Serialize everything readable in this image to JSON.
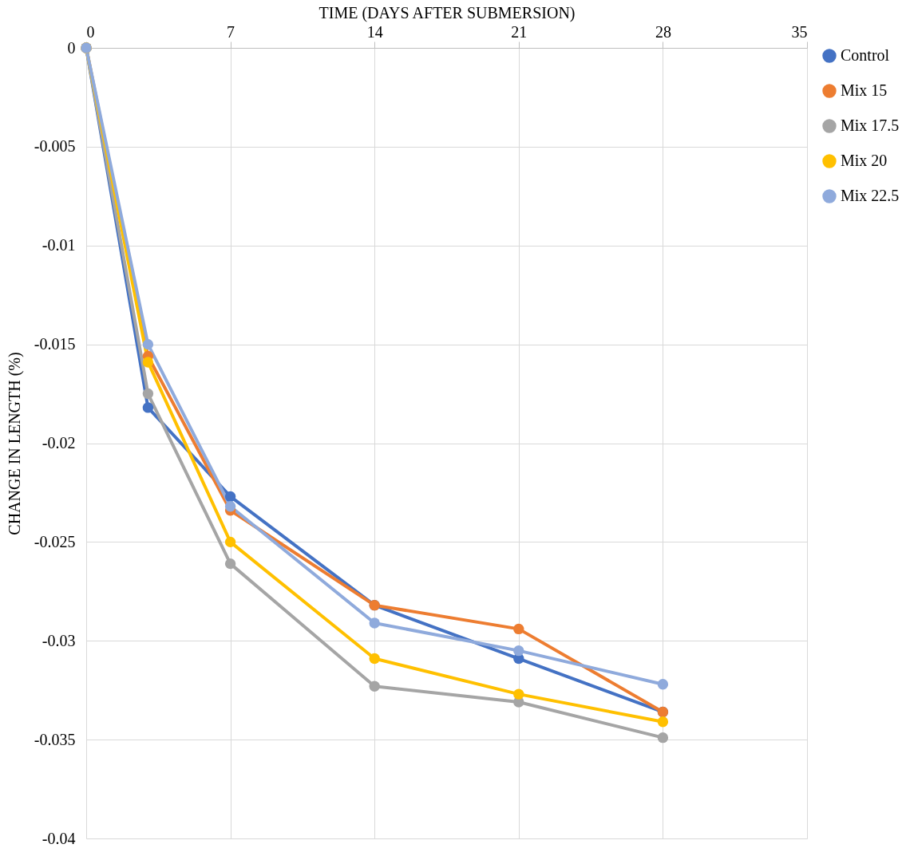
{
  "chart_data": {
    "type": "line",
    "xlabel": "TIME (DAYS AFTER SUBMERSION)",
    "ylabel": "CHANGE IN LENGTH (%)",
    "x": [
      0,
      3,
      7,
      14,
      21,
      28
    ],
    "series": [
      {
        "name": "Control",
        "color": "#4472c4",
        "values": [
          0,
          -0.0182,
          -0.0227,
          -0.0282,
          -0.0309,
          -0.0336
        ]
      },
      {
        "name": "Mix 15",
        "color": "#ed7d31",
        "values": [
          0,
          -0.0156,
          -0.0234,
          -0.0282,
          -0.0294,
          -0.0336
        ]
      },
      {
        "name": "Mix 17.5",
        "color": "#a5a5a5",
        "values": [
          0,
          -0.0175,
          -0.0261,
          -0.0323,
          -0.0331,
          -0.0349
        ]
      },
      {
        "name": "Mix 20",
        "color": "#ffc000",
        "values": [
          0,
          -0.0159,
          -0.025,
          -0.0309,
          -0.0327,
          -0.0341
        ]
      },
      {
        "name": "Mix 22.5",
        "color": "#8faadc",
        "values": [
          0,
          -0.015,
          -0.0232,
          -0.0291,
          -0.0305,
          -0.0322
        ]
      }
    ],
    "xlim": [
      0,
      35
    ],
    "xticks": [
      0,
      7,
      14,
      21,
      28,
      35
    ],
    "ylim": [
      -0.04,
      0
    ],
    "yticks": [
      -0.04,
      -0.035,
      -0.03,
      -0.025,
      -0.02,
      -0.015,
      -0.01,
      -0.005,
      0
    ],
    "grid": true,
    "legend": "right",
    "marker": "circle",
    "line_style": "solid"
  }
}
